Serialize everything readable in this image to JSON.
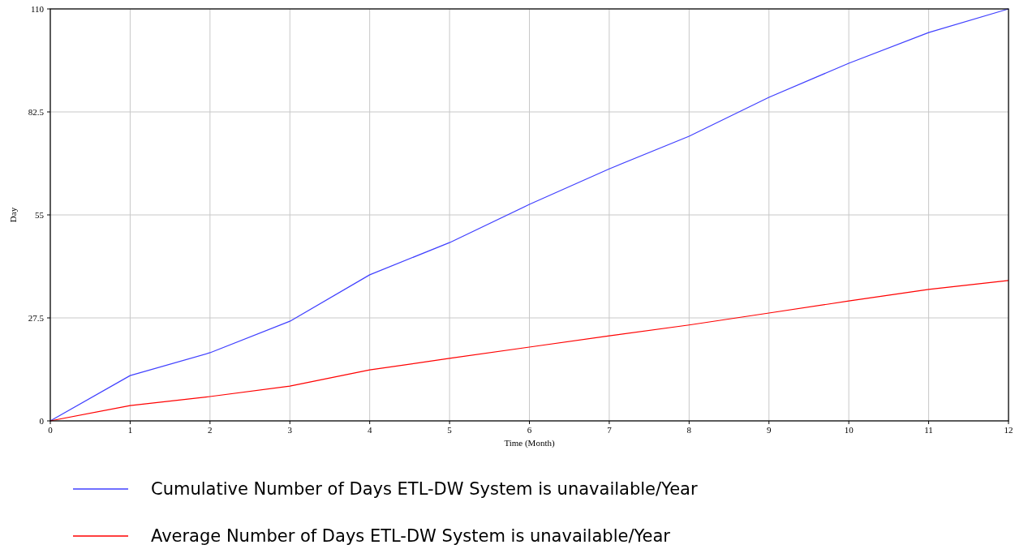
{
  "chart_data": {
    "type": "line",
    "xlabel": "Time (Month)",
    "ylabel": "Day",
    "x": [
      0,
      1,
      2,
      3,
      4,
      5,
      6,
      7,
      8,
      9,
      10,
      11,
      12
    ],
    "series": [
      {
        "name": "Cumulative Number of Days ETL-DW System is unavailable/Year",
        "color": "#4040ff",
        "values": [
          0,
          12.1,
          18.2,
          26.6,
          39,
          47.6,
          57.8,
          67.3,
          76,
          86.4,
          95.5,
          103.7,
          110
        ]
      },
      {
        "name": "Average Number of Days ETL-DW System is unavailable/Year",
        "color": "#ff0000",
        "values": [
          0,
          4.1,
          6.5,
          9.3,
          13.6,
          16.7,
          19.7,
          22.7,
          25.6,
          28.8,
          32,
          35.1,
          37.5
        ]
      }
    ],
    "xlim": [
      0,
      12
    ],
    "xticks": [
      0,
      1,
      2,
      3,
      4,
      5,
      6,
      7,
      8,
      9,
      10,
      11,
      12
    ],
    "ylim": [
      0,
      110
    ],
    "yticks": [
      0,
      27.5,
      55,
      82.5,
      110
    ],
    "grid": true,
    "legend": "bottom",
    "marker": "none",
    "line_style": "solid"
  }
}
